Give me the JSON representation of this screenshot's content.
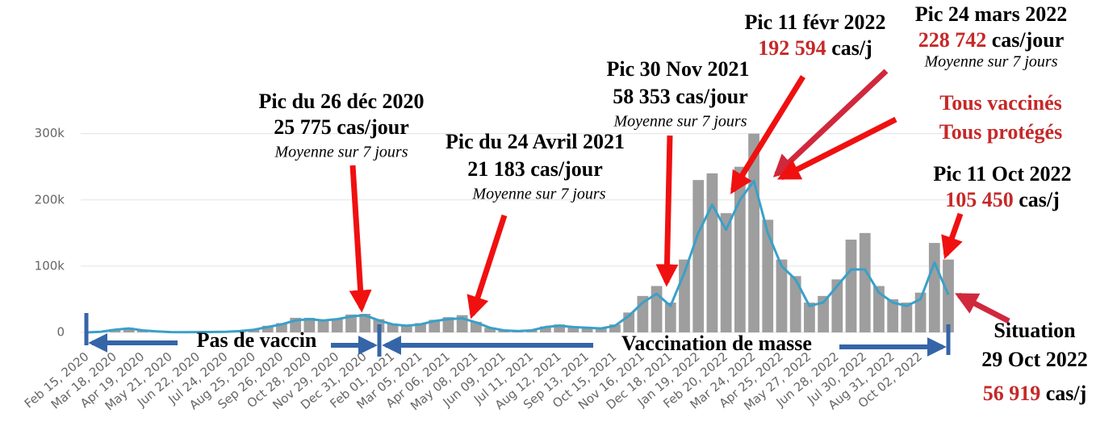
{
  "chart_data": {
    "type": "bar",
    "categories": [
      "Feb 15, 2020",
      null,
      "Mar 18, 2020",
      null,
      "Apr 19, 2020",
      null,
      "May 21, 2020",
      null,
      "Jun 22, 2020",
      null,
      "Jul 24, 2020",
      null,
      "Aug 25, 2020",
      null,
      "Sep 26, 2020",
      null,
      "Oct 28, 2020",
      null,
      "Nov 29, 2020",
      null,
      "Dec 31, 2020",
      null,
      "Feb 01, 2021",
      null,
      "Mar 05, 2021",
      null,
      "Apr 06, 2021",
      null,
      "May 08, 2021",
      null,
      "Jun 09, 2021",
      null,
      "Jul 11, 2021",
      null,
      "Aug 12, 2021",
      null,
      "Sep 13, 2021",
      null,
      "Oct 15, 2021",
      null,
      "Nov 16, 2021",
      null,
      "Dec 18, 2021",
      null,
      "Jan 19, 2022",
      null,
      "Feb 20, 2022",
      null,
      "Mar 24, 2022",
      null,
      "Apr 25, 2022",
      null,
      "May 27, 2022",
      null,
      "Jun 28, 2022",
      null,
      "Jul 30, 2022",
      null,
      "Aug 31, 2022",
      null,
      "Oct 02, 2022",
      null,
      null
    ],
    "series": [
      {
        "type": "bar",
        "color": "#9e9e9e",
        "values": [
          0,
          1000,
          5000,
          7000,
          3000,
          1000,
          500,
          500,
          500,
          700,
          1000,
          3000,
          5000,
          10000,
          14000,
          22000,
          22000,
          18000,
          21000,
          27000,
          28000,
          20000,
          13000,
          11000,
          14000,
          19000,
          23000,
          26000,
          16000,
          7000,
          3000,
          2000,
          3000,
          9000,
          12000,
          9000,
          7000,
          7000,
          12000,
          30000,
          55000,
          70000,
          45000,
          110000,
          230000,
          240000,
          180000,
          250000,
          300000,
          170000,
          110000,
          85000,
          45000,
          55000,
          80000,
          140000,
          150000,
          70000,
          50000,
          45000,
          60000,
          135000,
          110000
        ]
      },
      {
        "type": "line",
        "color": "#3aa0c8",
        "values": [
          0,
          1000,
          4000,
          6000,
          3000,
          1500,
          500,
          400,
          500,
          600,
          800,
          2000,
          4000,
          8000,
          12000,
          18000,
          20000,
          18000,
          20000,
          24000,
          25775,
          18000,
          12000,
          10000,
          12000,
          17000,
          20000,
          21183,
          15000,
          7000,
          3000,
          2000,
          3000,
          8000,
          10000,
          8000,
          7000,
          6000,
          10000,
          25000,
          45000,
          58353,
          40000,
          90000,
          150000,
          192594,
          155000,
          200000,
          228742,
          150000,
          100000,
          80000,
          40000,
          45000,
          70000,
          95000,
          95000,
          60000,
          45000,
          40000,
          50000,
          105450,
          56919
        ]
      }
    ],
    "ylim": [
      0,
      330000
    ],
    "yticks": [
      0,
      {
        "value": 100000,
        "label": "100k"
      },
      {
        "value": 200000,
        "label": "200k"
      },
      {
        "value": 300000,
        "label": "300k"
      }
    ],
    "grid": true,
    "annotations": {
      "dec2020": {
        "title": "Pic du 26 déc 2020",
        "value": "25 775 cas/jour",
        "note": "Moyenne sur 7 jours"
      },
      "apr2021": {
        "title": "Pic du 24 Avril 2021",
        "value": "21 183 cas/jour",
        "note": "Moyenne sur 7 jours"
      },
      "nov2021": {
        "title": "Pic 30 Nov 2021",
        "value": "58 353 cas/jour",
        "note": "Moyenne sur 7 jours"
      },
      "feb2022": {
        "title": "Pic 11 févr 2022",
        "value": "192 594",
        "unit": "cas/j"
      },
      "mar2022": {
        "title": "Pic 24 mars 2022",
        "value": "228 742",
        "unit": "cas/jour",
        "note": "Moyenne sur 7 jours"
      },
      "slogan": [
        "Tous vaccinés",
        "Tous protégés"
      ],
      "oct2022": {
        "title": "Pic 11 Oct 2022",
        "value": "105 450",
        "unit": "cas/j"
      },
      "now": {
        "title": "Situation",
        "date": "29 Oct 2022",
        "value": "56 919",
        "unit": "cas/j"
      },
      "novax": "Pas de vaccin",
      "vax": "Vaccination de masse"
    }
  }
}
